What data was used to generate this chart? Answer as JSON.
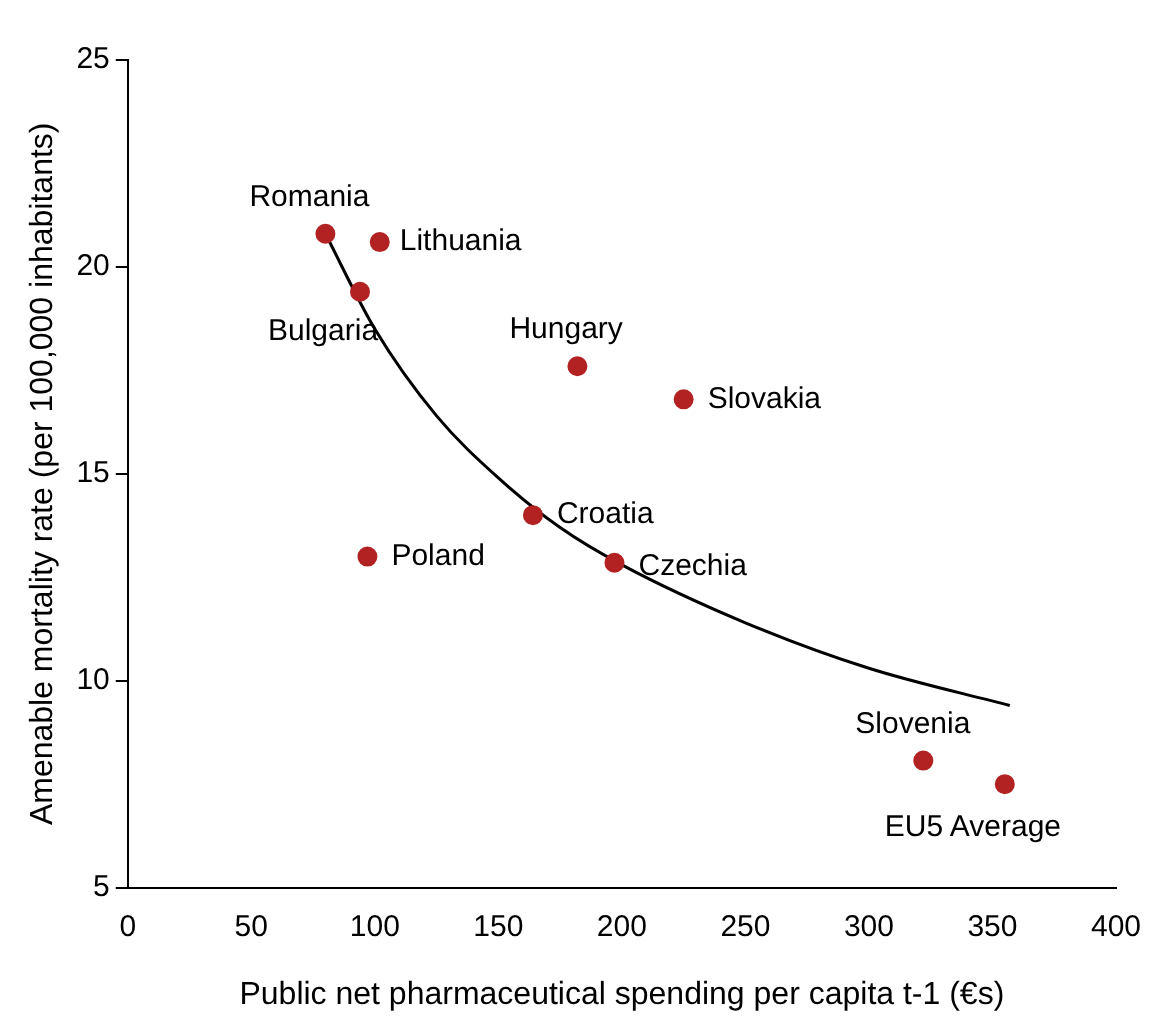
{
  "chart_data": {
    "type": "scatter",
    "xlabel": "Public net pharmaceutical spending per capita t-1 (€s)",
    "ylabel": "Amenable mortality rate (per 100,000 inhabitants)",
    "xlim": [
      0,
      400
    ],
    "xticks": [
      0,
      50,
      100,
      150,
      200,
      250,
      300,
      350,
      400
    ],
    "ylim": [
      5,
      25
    ],
    "yticks": [
      5,
      10,
      15,
      20,
      25
    ],
    "grid": false,
    "legend": false,
    "series": [
      {
        "marker": "circle",
        "color": "#b22222",
        "x": [
          80,
          102,
          94,
          182,
          225,
          164,
          97,
          197,
          322,
          355
        ],
        "values": [
          20.8,
          20.6,
          19.4,
          17.6,
          16.8,
          14.0,
          13.0,
          12.85,
          8.07,
          7.5
        ]
      },
      {
        "type": "line",
        "marker": "none",
        "color": "#000000",
        "x": [
          80,
          100,
          125,
          150,
          175,
          200,
          250,
          300,
          357
        ],
        "values": [
          20.8,
          18.5,
          16.4,
          14.9,
          13.7,
          12.8,
          11.4,
          10.3,
          9.4
        ]
      }
    ],
    "annotations": [
      {
        "text": "Romania",
        "x": 80,
        "y": 20.8
      },
      {
        "text": "Lithuania",
        "x": 102,
        "y": 20.6
      },
      {
        "text": "Bulgaria",
        "x": 94,
        "y": 19.4
      },
      {
        "text": "Hungary",
        "x": 182,
        "y": 17.6
      },
      {
        "text": "Slovakia",
        "x": 225,
        "y": 16.8
      },
      {
        "text": "Croatia",
        "x": 164,
        "y": 14.0
      },
      {
        "text": "Poland",
        "x": 97,
        "y": 13.0
      },
      {
        "text": "Czechia",
        "x": 197,
        "y": 12.85
      },
      {
        "text": "Slovenia",
        "x": 322,
        "y": 8.07
      },
      {
        "text": "EU5 Average",
        "x": 355,
        "y": 7.5
      }
    ]
  }
}
